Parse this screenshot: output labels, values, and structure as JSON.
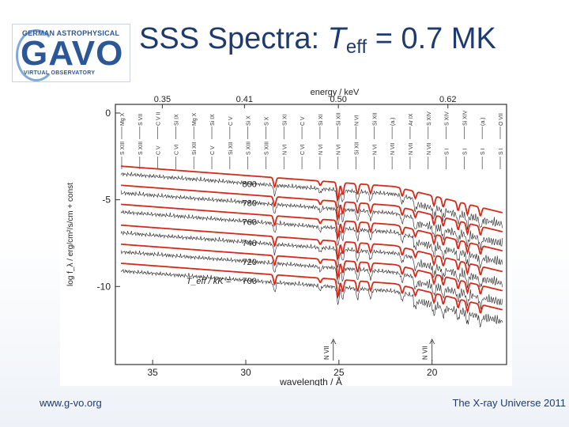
{
  "logo": {
    "top_text": "GERMAN ASTROPHYSICAL",
    "main_text": "GAVO",
    "sub_text": "VIRTUAL OBSERVATORY"
  },
  "title": {
    "prefix": "SSS Spectra: ",
    "var": "T",
    "subscript": "eff",
    "suffix": " = 0.7 MK"
  },
  "footer": {
    "left": "www.g-vo.org",
    "right": "The X-ray Universe 2011"
  },
  "chart_data": {
    "type": "line",
    "xlabel": "wavelength / Å",
    "top_axis_label": "energy / keV",
    "ylabel": "log f_λ / erg/cm²/s/cm + const",
    "x_ticks": [
      "35",
      "30",
      "25",
      "20"
    ],
    "top_ticks": [
      "0.35",
      "0.41",
      "0.50",
      "0.62"
    ],
    "y_ticks": [
      "0",
      "-5",
      "-10"
    ],
    "xlim": [
      37,
      16
    ],
    "ylim": [
      -14.5,
      0.5
    ],
    "series_label_prefix": "T_eff / kK =",
    "series": [
      {
        "name": "800",
        "offset": -3.6
      },
      {
        "name": "780",
        "offset": -4.7
      },
      {
        "name": "760",
        "offset": -5.8
      },
      {
        "name": "740",
        "offset": -7.0
      },
      {
        "name": "720",
        "offset": -8.1
      },
      {
        "name": "700",
        "offset": -9.2
      }
    ],
    "line_ids_top": [
      "Mg X",
      "S VII",
      "C V II",
      "Si IX",
      "Mg X",
      "Si IX",
      "C V",
      "Si X",
      "S X",
      "Si XI",
      "C V",
      "Si XI",
      "Si XII",
      "N VI",
      "Si XII",
      "(a.)",
      "Ar IX",
      "S XIV",
      "S XIV",
      "Si XIV",
      "(a.)",
      "O VII"
    ],
    "line_ids_bottom": [
      "S XIII",
      "S XIII",
      "C V",
      "C VI",
      "Si XII",
      "C V",
      "Si XII",
      "S XIII",
      "S XIII",
      "N VI",
      "C VI",
      "N VI",
      "N VI",
      "Si XII",
      "N VI",
      "N VII",
      "N VII",
      "N VII",
      "S I",
      "S I",
      "S I",
      "S I"
    ],
    "arrow_labels": [
      "N VII",
      "N VII"
    ],
    "colors": {
      "model": "#d42a1c",
      "observed": "#222222"
    }
  }
}
